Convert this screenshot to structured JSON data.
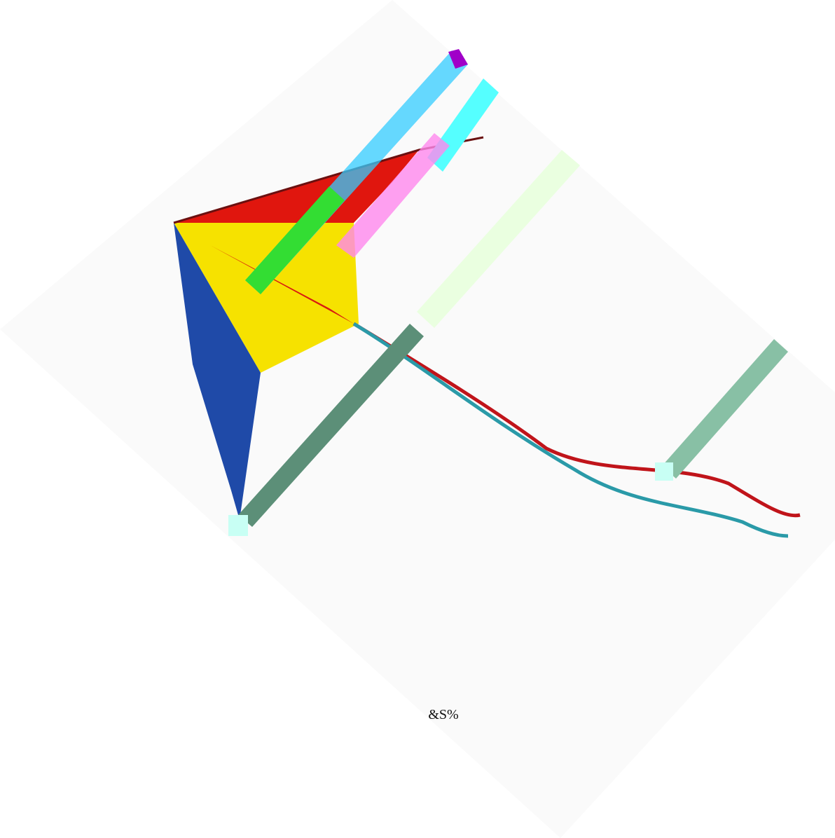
{
  "caption": "&S%"
}
